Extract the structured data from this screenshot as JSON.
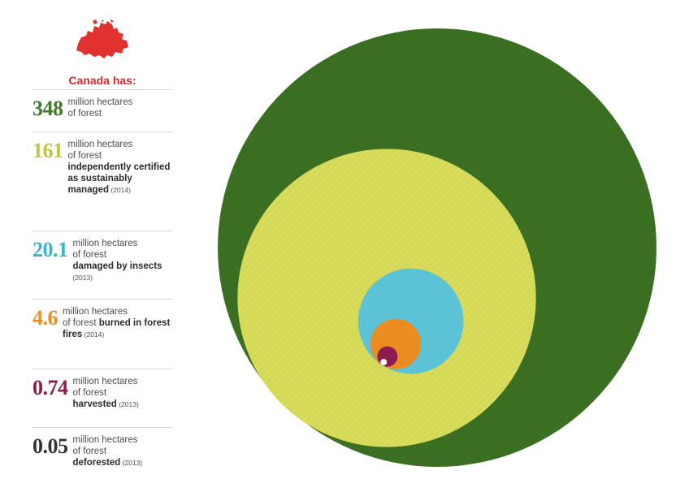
{
  "headline": "Canada has:",
  "stats": [
    {
      "value": "348",
      "color": "#3f7a2a",
      "line1": "million hectares",
      "line2": "of forest",
      "bold": "",
      "year": ""
    },
    {
      "value": "161",
      "color": "#c2c53c",
      "line1": "million hectares",
      "line2": "of forest",
      "bold": "independently certified as sustainably managed",
      "year": "(2014)"
    },
    {
      "value": "20.1",
      "color": "#3bb6c9",
      "line1": "million hectares",
      "line2": "of forest",
      "bold": "damaged by insects",
      "year": "(2013)"
    },
    {
      "value": "4.6",
      "color": "#ef8e1e",
      "line1": "million hectares",
      "line2": "of forest",
      "bold": "burned in forest fires",
      "year": "(2014)"
    },
    {
      "value": "0.74",
      "color": "#8c1b4f",
      "line1": "million hectares",
      "line2": "of forest",
      "bold": "harvested",
      "year": "(2013)"
    },
    {
      "value": "0.05",
      "color": "#333333",
      "line1": "million hectares",
      "line2": "of forest",
      "bold": "deforested",
      "year": "(2013)"
    }
  ],
  "chart_data": {
    "type": "bubble",
    "units": "million hectares",
    "series": [
      {
        "name": "of forest",
        "value": 348,
        "color": "#3b6f22"
      },
      {
        "name": "independently certified as sustainably managed (2014)",
        "value": 161,
        "color": "#d8dc5a"
      },
      {
        "name": "damaged by insects (2013)",
        "value": 20.1,
        "color": "#5cc3d6"
      },
      {
        "name": "burned in forest fires (2014)",
        "value": 4.6,
        "color": "#ec8b1f"
      },
      {
        "name": "harvested (2013)",
        "value": 0.74,
        "color": "#8c1b4f"
      },
      {
        "name": "deforested (2013)",
        "value": 0.05,
        "color": "#ffffff"
      }
    ]
  }
}
